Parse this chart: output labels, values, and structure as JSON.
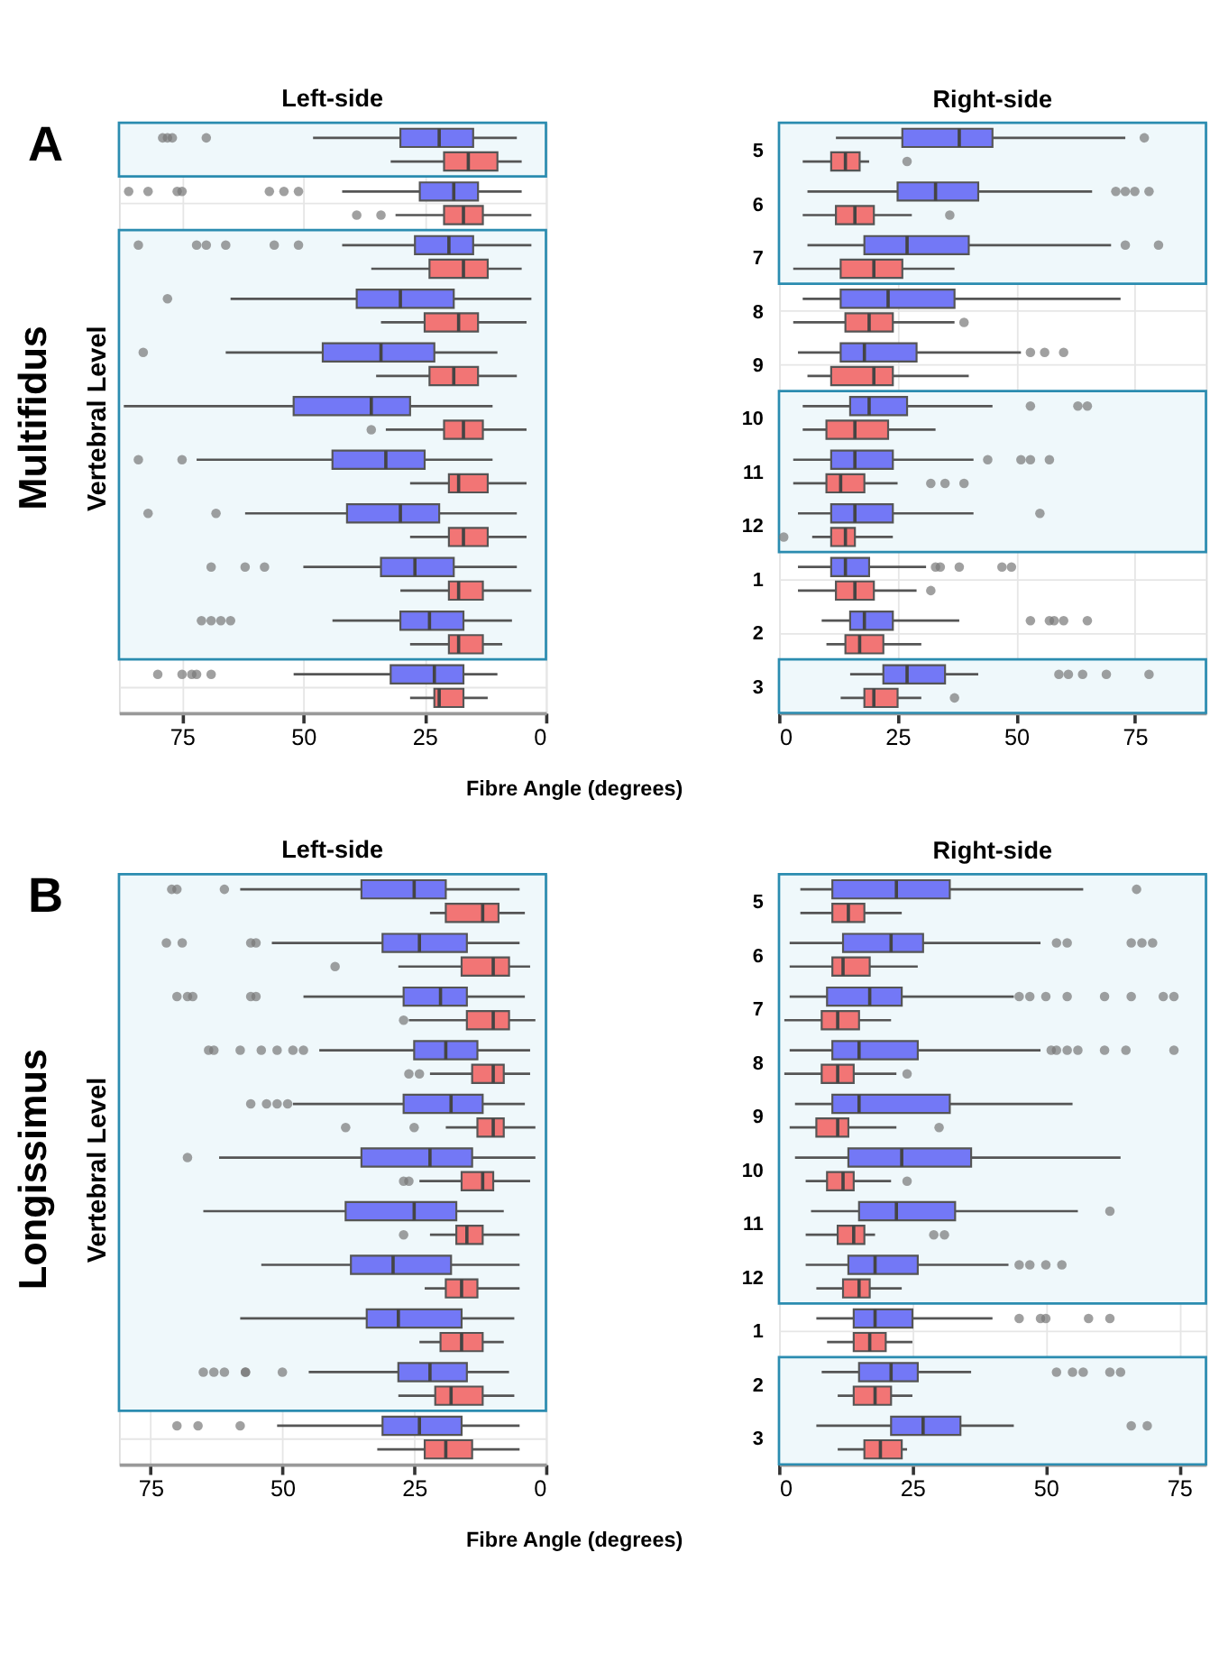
{
  "chart_data": [
    {
      "type": "box",
      "orientation": "horizontal",
      "title": "Left-side",
      "xlabel": "Fibre Angle (degrees)",
      "ylabel": "Vertebral Level",
      "annotations": [
        "A",
        "Multifidus"
      ],
      "categories": [
        "5",
        "6",
        "7",
        "8",
        "9",
        "10",
        "11",
        "12",
        "1",
        "2",
        "3"
      ],
      "xlim": [
        88,
        0
      ],
      "xticks": [
        75,
        50,
        25,
        0
      ],
      "grid": true,
      "tick_labels": "x",
      "bands": [
        {
          "axis": "y",
          "from": "5",
          "to": "5",
          "color": "#2b8cb0"
        },
        {
          "axis": "y",
          "from": "7",
          "to": "2",
          "color": "#2b8cb0"
        }
      ],
      "series": [
        {
          "color": "#7378f6",
          "boxes": [
            {
              "low": 6,
              "q1": 15,
              "median": 22,
              "q3": 30,
              "high": 48,
              "outliers": [
                79,
                78,
                77,
                70
              ]
            },
            {
              "low": 5,
              "q1": 14,
              "median": 19,
              "q3": 26,
              "high": 42,
              "outliers": [
                86,
                82,
                76,
                75,
                57,
                54,
                51
              ]
            },
            {
              "low": 3,
              "q1": 15,
              "median": 20,
              "q3": 27,
              "high": 42,
              "outliers": [
                84,
                72,
                70,
                66,
                56,
                51
              ]
            },
            {
              "low": 3,
              "q1": 19,
              "median": 30,
              "q3": 39,
              "high": 65,
              "outliers": [
                78
              ]
            },
            {
              "low": 10,
              "q1": 23,
              "median": 34,
              "q3": 46,
              "high": 66,
              "outliers": [
                83
              ]
            },
            {
              "low": 11,
              "q1": 28,
              "median": 36,
              "q3": 52,
              "high": 87
            },
            {
              "low": 11,
              "q1": 25,
              "median": 33,
              "q3": 44,
              "high": 72,
              "outliers": [
                84,
                75
              ]
            },
            {
              "low": 6,
              "q1": 22,
              "median": 30,
              "q3": 41,
              "high": 62,
              "outliers": [
                82,
                68
              ]
            },
            {
              "low": 6,
              "q1": 19,
              "median": 27,
              "q3": 34,
              "high": 50,
              "outliers": [
                69,
                62,
                58
              ]
            },
            {
              "low": 7,
              "q1": 17,
              "median": 24,
              "q3": 30,
              "high": 44,
              "outliers": [
                71,
                69,
                67,
                65
              ]
            },
            {
              "low": 10,
              "q1": 17,
              "median": 23,
              "q3": 32,
              "high": 52,
              "outliers": [
                80,
                75,
                73,
                72,
                69
              ]
            }
          ]
        },
        {
          "color": "#f27575",
          "boxes": [
            {
              "low": 5,
              "q1": 10,
              "median": 16,
              "q3": 21,
              "high": 32
            },
            {
              "low": 3,
              "q1": 13,
              "median": 17,
              "q3": 21,
              "high": 31,
              "outliers": [
                39,
                34
              ]
            },
            {
              "low": 5,
              "q1": 12,
              "median": 17,
              "q3": 24,
              "high": 36
            },
            {
              "low": 4,
              "q1": 14,
              "median": 18,
              "q3": 25,
              "high": 34
            },
            {
              "low": 6,
              "q1": 14,
              "median": 19,
              "q3": 24,
              "high": 35
            },
            {
              "low": 4,
              "q1": 13,
              "median": 17,
              "q3": 21,
              "high": 33,
              "outliers": [
                36
              ]
            },
            {
              "low": 4,
              "q1": 12,
              "median": 18,
              "q3": 20,
              "high": 28
            },
            {
              "low": 4,
              "q1": 12,
              "median": 17,
              "q3": 20,
              "high": 28
            },
            {
              "low": 3,
              "q1": 13,
              "median": 18,
              "q3": 20,
              "high": 30
            },
            {
              "low": 9,
              "q1": 13,
              "median": 18,
              "q3": 20,
              "high": 28
            },
            {
              "low": 12,
              "q1": 17,
              "median": 22,
              "q3": 23,
              "high": 28
            }
          ]
        }
      ]
    },
    {
      "type": "box",
      "orientation": "horizontal",
      "title": "Right-side",
      "categories": [
        "5",
        "6",
        "7",
        "8",
        "9",
        "10",
        "11",
        "12",
        "1",
        "2",
        "3"
      ],
      "xlim": [
        0,
        90
      ],
      "xticks": [
        0,
        25,
        50,
        75
      ],
      "grid": true,
      "bands": [
        {
          "axis": "y",
          "from": "5",
          "to": "7",
          "color": "#2b8cb0"
        },
        {
          "axis": "y",
          "from": "10",
          "to": "12",
          "color": "#2b8cb0"
        },
        {
          "axis": "y",
          "from": "3",
          "to": "3",
          "color": "#2b8cb0"
        }
      ],
      "series": [
        {
          "color": "#7378f6",
          "boxes": [
            {
              "low": 12,
              "q1": 26,
              "median": 38,
              "q3": 45,
              "high": 73,
              "outliers": [
                77
              ]
            },
            {
              "low": 6,
              "q1": 25,
              "median": 33,
              "q3": 42,
              "high": 66,
              "outliers": [
                71,
                73,
                75,
                78
              ]
            },
            {
              "low": 6,
              "q1": 18,
              "median": 27,
              "q3": 40,
              "high": 70,
              "outliers": [
                73,
                80
              ]
            },
            {
              "low": 5,
              "q1": 13,
              "median": 23,
              "q3": 37,
              "high": 72
            },
            {
              "low": 4,
              "q1": 13,
              "median": 18,
              "q3": 29,
              "high": 51,
              "outliers": [
                53,
                56,
                60
              ]
            },
            {
              "low": 5,
              "q1": 15,
              "median": 19,
              "q3": 27,
              "high": 45,
              "outliers": [
                53,
                63,
                65
              ]
            },
            {
              "low": 3,
              "q1": 11,
              "median": 16,
              "q3": 24,
              "high": 41,
              "outliers": [
                44,
                51,
                53,
                57
              ]
            },
            {
              "low": 4,
              "q1": 11,
              "median": 16,
              "q3": 24,
              "high": 41,
              "outliers": [
                55
              ]
            },
            {
              "low": 4,
              "q1": 11,
              "median": 14,
              "q3": 19,
              "high": 31,
              "outliers": [
                33,
                34,
                38,
                47,
                49
              ]
            },
            {
              "low": 9,
              "q1": 15,
              "median": 18,
              "q3": 24,
              "high": 38,
              "outliers": [
                53,
                57,
                58,
                60,
                65
              ]
            },
            {
              "low": 15,
              "q1": 22,
              "median": 27,
              "q3": 35,
              "high": 42,
              "outliers": [
                59,
                61,
                64,
                69,
                78
              ]
            }
          ]
        },
        {
          "color": "#f27575",
          "boxes": [
            {
              "low": 5,
              "q1": 11,
              "median": 14,
              "q3": 17,
              "high": 19,
              "outliers": [
                27
              ]
            },
            {
              "low": 5,
              "q1": 12,
              "median": 16,
              "q3": 20,
              "high": 28,
              "outliers": [
                36
              ]
            },
            {
              "low": 3,
              "q1": 13,
              "median": 20,
              "q3": 26,
              "high": 37
            },
            {
              "low": 3,
              "q1": 14,
              "median": 19,
              "q3": 24,
              "high": 37,
              "outliers": [
                39
              ]
            },
            {
              "low": 6,
              "q1": 11,
              "median": 20,
              "q3": 24,
              "high": 40
            },
            {
              "low": 5,
              "q1": 10,
              "median": 16,
              "q3": 23,
              "high": 33
            },
            {
              "low": 3,
              "q1": 10,
              "median": 13,
              "q3": 18,
              "high": 25,
              "outliers": [
                32,
                35,
                39
              ]
            },
            {
              "low": 7,
              "q1": 11,
              "median": 14,
              "q3": 16,
              "high": 24,
              "outliers": [
                1
              ]
            },
            {
              "low": 4,
              "q1": 12,
              "median": 16,
              "q3": 20,
              "high": 29,
              "outliers": [
                32
              ]
            },
            {
              "low": 10,
              "q1": 14,
              "median": 17,
              "q3": 22,
              "high": 30
            },
            {
              "low": 13,
              "q1": 18,
              "median": 20,
              "q3": 25,
              "high": 30,
              "outliers": [
                37
              ]
            }
          ]
        }
      ]
    },
    {
      "type": "box",
      "orientation": "horizontal",
      "title": "Left-side",
      "xlabel": "Fibre Angle (degrees)",
      "ylabel": "Vertebral Level",
      "annotations": [
        "B",
        "Longissimus"
      ],
      "categories": [
        "5",
        "6",
        "7",
        "8",
        "9",
        "10",
        "11",
        "12",
        "1",
        "2",
        "3"
      ],
      "xlim": [
        81,
        0
      ],
      "xticks": [
        75,
        50,
        25,
        0
      ],
      "grid": true,
      "tick_labels": "x",
      "bands": [
        {
          "axis": "y",
          "from": "5",
          "to": "2",
          "color": "#2b8cb0"
        }
      ],
      "series": [
        {
          "color": "#7378f6",
          "boxes": [
            {
              "low": 5,
              "q1": 19,
              "median": 25,
              "q3": 35,
              "high": 58,
              "outliers": [
                71,
                70,
                61
              ]
            },
            {
              "low": 5,
              "q1": 15,
              "median": 24,
              "q3": 31,
              "high": 52,
              "outliers": [
                72,
                69,
                56,
                55
              ]
            },
            {
              "low": 4,
              "q1": 15,
              "median": 20,
              "q3": 27,
              "high": 46,
              "outliers": [
                70,
                68,
                67,
                56,
                55
              ]
            },
            {
              "low": 3,
              "q1": 13,
              "median": 19,
              "q3": 25,
              "high": 43,
              "outliers": [
                64,
                63,
                58,
                54,
                51,
                48,
                46
              ]
            },
            {
              "low": 4,
              "q1": 12,
              "median": 18,
              "q3": 27,
              "high": 48,
              "outliers": [
                56,
                53,
                51,
                49
              ]
            },
            {
              "low": 2,
              "q1": 14,
              "median": 22,
              "q3": 35,
              "high": 62,
              "outliers": [
                68
              ]
            },
            {
              "low": 8,
              "q1": 17,
              "median": 25,
              "q3": 38,
              "high": 65
            },
            {
              "low": 5,
              "q1": 18,
              "median": 29,
              "q3": 37,
              "high": 54
            },
            {
              "low": 6,
              "q1": 16,
              "median": 28,
              "q3": 34,
              "high": 58
            },
            {
              "low": 7,
              "q1": 15,
              "median": 22,
              "q3": 28,
              "high": 45,
              "outliers": [
                65,
                63,
                61,
                57,
                57,
                50
              ]
            },
            {
              "low": 5,
              "q1": 16,
              "median": 24,
              "q3": 31,
              "high": 51,
              "outliers": [
                70,
                66,
                58
              ]
            }
          ]
        },
        {
          "color": "#f27575",
          "boxes": [
            {
              "low": 4,
              "q1": 9,
              "median": 12,
              "q3": 19,
              "high": 22
            },
            {
              "low": 3,
              "q1": 7,
              "median": 10,
              "q3": 16,
              "high": 28,
              "outliers": [
                40
              ]
            },
            {
              "low": 2,
              "q1": 7,
              "median": 10,
              "q3": 15,
              "high": 26,
              "outliers": [
                27
              ]
            },
            {
              "low": 3,
              "q1": 8,
              "median": 10,
              "q3": 14,
              "high": 22,
              "outliers": [
                26,
                24
              ]
            },
            {
              "low": 2,
              "q1": 8,
              "median": 10,
              "q3": 13,
              "high": 19,
              "outliers": [
                38,
                25
              ]
            },
            {
              "low": 3,
              "q1": 10,
              "median": 12,
              "q3": 16,
              "high": 24,
              "outliers": [
                27,
                26
              ]
            },
            {
              "low": 5,
              "q1": 12,
              "median": 15,
              "q3": 17,
              "high": 22,
              "outliers": [
                27
              ]
            },
            {
              "low": 5,
              "q1": 13,
              "median": 16,
              "q3": 19,
              "high": 23
            },
            {
              "low": 8,
              "q1": 12,
              "median": 16,
              "q3": 20,
              "high": 24
            },
            {
              "low": 6,
              "q1": 12,
              "median": 18,
              "q3": 21,
              "high": 28
            },
            {
              "low": 5,
              "q1": 14,
              "median": 19,
              "q3": 23,
              "high": 32
            }
          ]
        }
      ]
    },
    {
      "type": "box",
      "orientation": "horizontal",
      "title": "Right-side",
      "categories": [
        "5",
        "6",
        "7",
        "8",
        "9",
        "10",
        "11",
        "12",
        "1",
        "2",
        "3"
      ],
      "xlim": [
        0,
        80
      ],
      "xticks": [
        0,
        25,
        50,
        75
      ],
      "grid": true,
      "bands": [
        {
          "axis": "y",
          "from": "5",
          "to": "12",
          "color": "#2b8cb0"
        },
        {
          "axis": "y",
          "from": "2",
          "to": "3",
          "color": "#2b8cb0"
        }
      ],
      "series": [
        {
          "color": "#7378f6",
          "boxes": [
            {
              "low": 4,
              "q1": 10,
              "median": 22,
              "q3": 32,
              "high": 57,
              "outliers": [
                67
              ]
            },
            {
              "low": 2,
              "q1": 12,
              "median": 21,
              "q3": 27,
              "high": 49,
              "outliers": [
                52,
                54,
                66,
                68,
                70
              ]
            },
            {
              "low": 2,
              "q1": 9,
              "median": 17,
              "q3": 23,
              "high": 44,
              "outliers": [
                45,
                47,
                50,
                54,
                61,
                66,
                72,
                74
              ]
            },
            {
              "low": 2,
              "q1": 10,
              "median": 15,
              "q3": 26,
              "high": 49,
              "outliers": [
                51,
                52,
                54,
                56,
                61,
                65,
                74
              ]
            },
            {
              "low": 3,
              "q1": 10,
              "median": 15,
              "q3": 32,
              "high": 55
            },
            {
              "low": 3,
              "q1": 13,
              "median": 23,
              "q3": 36,
              "high": 64
            },
            {
              "low": 6,
              "q1": 15,
              "median": 22,
              "q3": 33,
              "high": 56,
              "outliers": [
                62
              ]
            },
            {
              "low": 5,
              "q1": 13,
              "median": 18,
              "q3": 26,
              "high": 43,
              "outliers": [
                45,
                47,
                50,
                53
              ]
            },
            {
              "low": 7,
              "q1": 14,
              "median": 18,
              "q3": 25,
              "high": 40,
              "outliers": [
                45,
                49,
                50,
                58,
                62
              ]
            },
            {
              "low": 8,
              "q1": 15,
              "median": 21,
              "q3": 26,
              "high": 36,
              "outliers": [
                52,
                55,
                57,
                62,
                64
              ]
            },
            {
              "low": 7,
              "q1": 21,
              "median": 27,
              "q3": 34,
              "high": 44,
              "outliers": [
                66,
                69
              ]
            }
          ]
        },
        {
          "color": "#f27575",
          "boxes": [
            {
              "low": 4,
              "q1": 10,
              "median": 13,
              "q3": 16,
              "high": 23
            },
            {
              "low": 2,
              "q1": 10,
              "median": 12,
              "q3": 17,
              "high": 26
            },
            {
              "low": 1,
              "q1": 8,
              "median": 11,
              "q3": 15,
              "high": 21
            },
            {
              "low": 1,
              "q1": 8,
              "median": 11,
              "q3": 14,
              "high": 22,
              "outliers": [
                24
              ]
            },
            {
              "low": 2,
              "q1": 7,
              "median": 11,
              "q3": 13,
              "high": 22,
              "outliers": [
                30
              ]
            },
            {
              "low": 5,
              "q1": 9,
              "median": 12,
              "q3": 14,
              "high": 21,
              "outliers": [
                24
              ]
            },
            {
              "low": 5,
              "q1": 11,
              "median": 14,
              "q3": 16,
              "high": 18,
              "outliers": [
                29,
                31
              ]
            },
            {
              "low": 7,
              "q1": 12,
              "median": 15,
              "q3": 17,
              "high": 23
            },
            {
              "low": 9,
              "q1": 14,
              "median": 17,
              "q3": 20,
              "high": 25
            },
            {
              "low": 11,
              "q1": 14,
              "median": 18,
              "q3": 21,
              "high": 25
            },
            {
              "low": 11,
              "q1": 16,
              "median": 19,
              "q3": 23,
              "high": 24
            }
          ]
        }
      ]
    }
  ]
}
